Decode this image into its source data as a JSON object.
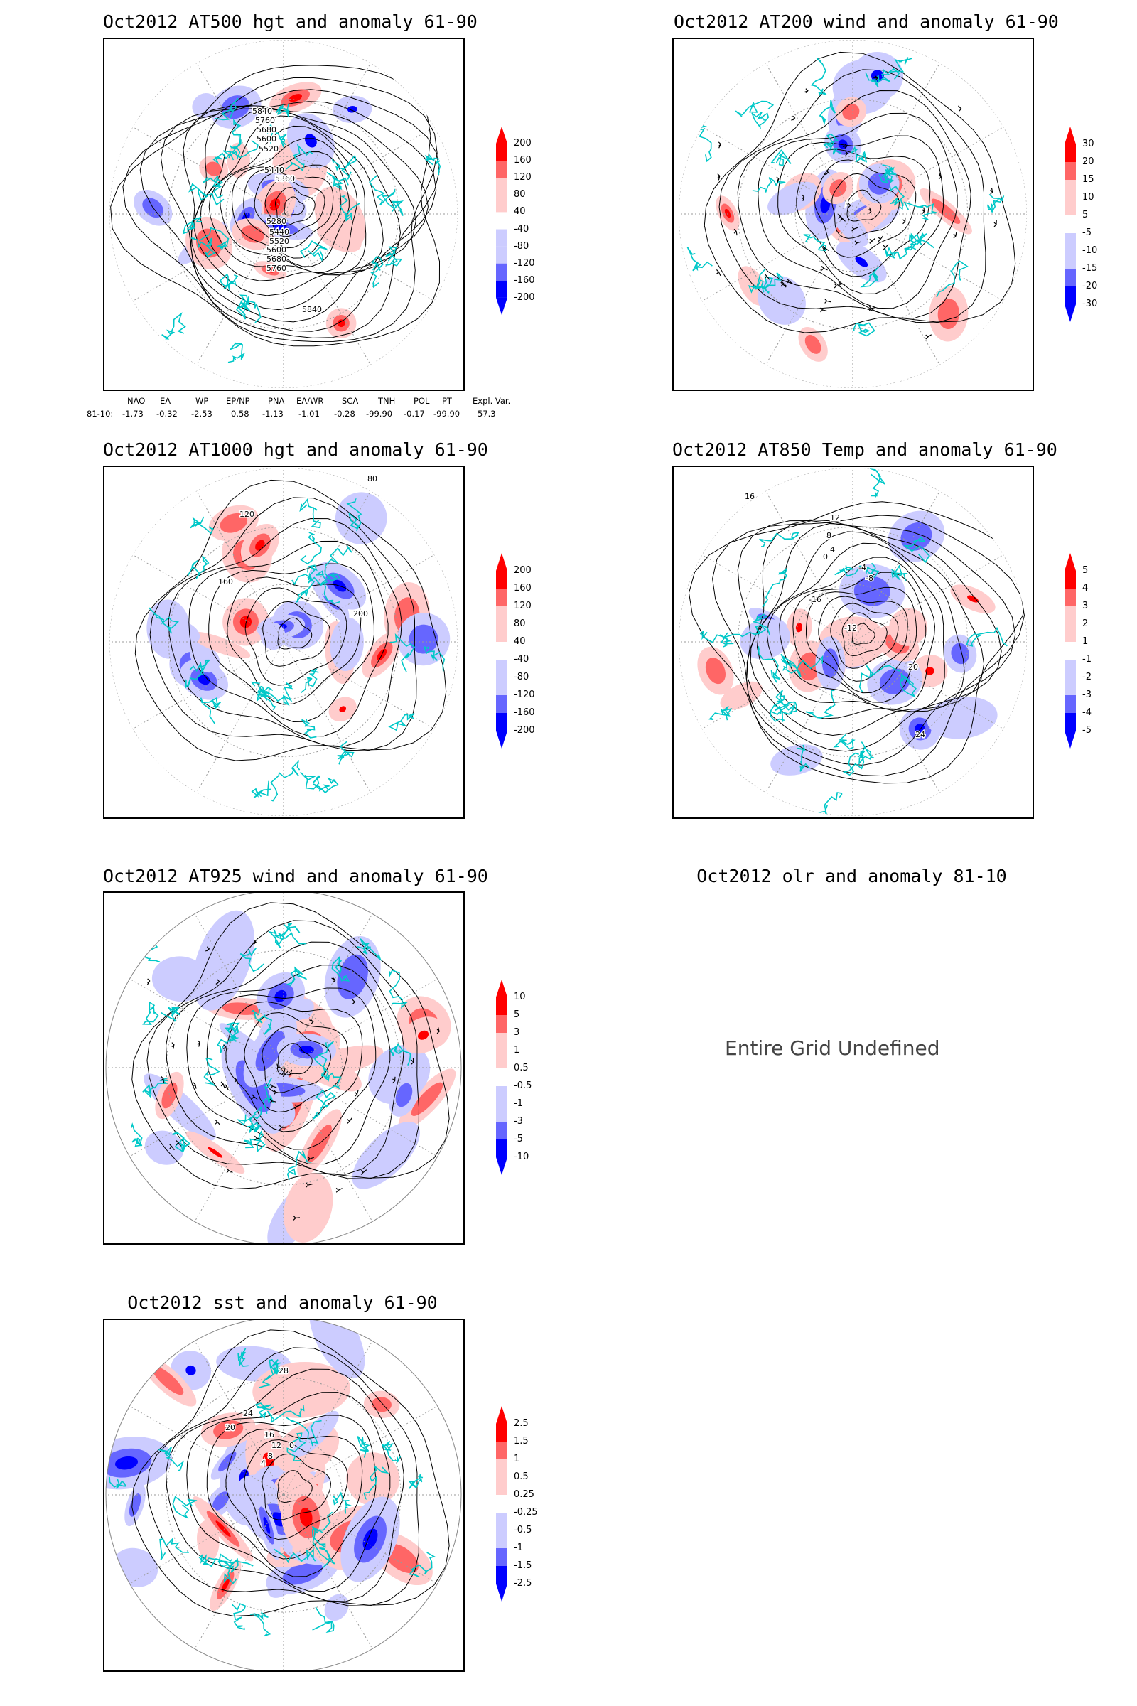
{
  "panels": {
    "p1": {
      "title": "Oct2012 AT500 hgt and anomaly 61-90",
      "contour_labels": [
        "5840",
        "5760",
        "5680",
        "5600",
        "5520",
        "5440",
        "5360",
        "5280",
        "5440",
        "5520",
        "5600",
        "5680",
        "5760",
        "5840"
      ]
    },
    "p2": {
      "title": "Oct2012 AT200 wind and anomaly 61-90"
    },
    "p3": {
      "title": "Oct2012 AT1000 hgt and anomaly 61-90",
      "contour_labels": [
        "80",
        "120",
        "160",
        "200"
      ]
    },
    "p4": {
      "title": "Oct2012 AT850 Temp and anomaly 61-90",
      "contour_labels": [
        "16",
        "12",
        "8",
        "4",
        "0",
        "-4",
        "-8",
        "-12",
        "-16",
        "20",
        "24"
      ]
    },
    "p5": {
      "title": "Oct2012 AT925 wind and anomaly 61-90"
    },
    "p6": {
      "title": "Oct2012 olr and anomaly 81-10",
      "message": "Entire Grid Undefined"
    },
    "p7": {
      "title": "Oct2012 sst and anomaly 61-90",
      "contour_labels": [
        "28",
        "24",
        "20",
        "16",
        "12",
        "8",
        "4",
        "0"
      ]
    }
  },
  "colorbars": {
    "hgt": [
      "200",
      "160",
      "120",
      "80",
      "40",
      "-40",
      "-80",
      "-120",
      "-160",
      "-200"
    ],
    "wind200": [
      "30",
      "20",
      "15",
      "10",
      "5",
      "-5",
      "-10",
      "-15",
      "-20",
      "-30"
    ],
    "temp": [
      "5",
      "4",
      "3",
      "2",
      "1",
      "-1",
      "-2",
      "-3",
      "-4",
      "-5"
    ],
    "wind925": [
      "10",
      "5",
      "3",
      "1",
      "0.5",
      "-0.5",
      "-1",
      "-3",
      "-5",
      "-10"
    ],
    "sst": [
      "2.5",
      "1.5",
      "1",
      "0.5",
      "0.25",
      "-0.25",
      "-0.5",
      "-1",
      "-1.5",
      "-2.5"
    ]
  },
  "index_table": {
    "headers": [
      "NAO",
      "EA",
      "WP",
      "EP/NP",
      "PNA",
      "EA/WR",
      "SCA",
      "TNH",
      "POL",
      "PT",
      "Expl. Var."
    ],
    "row_label": "81-10:",
    "values": [
      "-1.73",
      "-0.32",
      "-2.53",
      "0.58",
      "-1.13",
      "-1.01",
      "-0.28",
      "-99.90",
      "-0.17",
      "-99.90",
      "57.3"
    ]
  },
  "colors": {
    "red_strong": "#ff0000",
    "red_mid": "#ff6666",
    "red_light": "#ffcccc",
    "blue_strong": "#0000ff",
    "blue_mid": "#6666ff",
    "blue_light": "#ccccff",
    "coast": "#00c8c8"
  }
}
